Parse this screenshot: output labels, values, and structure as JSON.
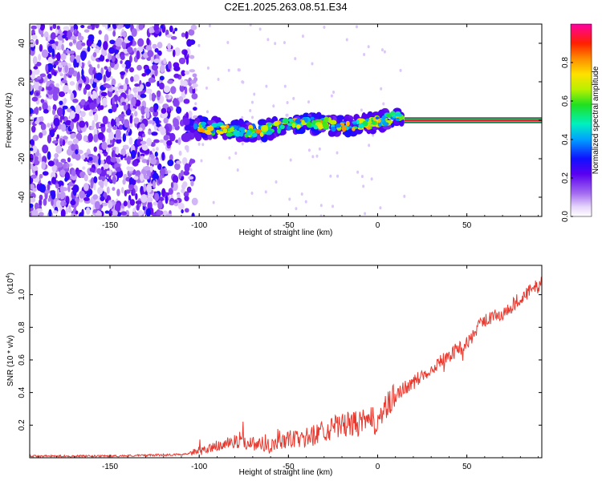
{
  "chart_data": [
    {
      "type": "heatmap",
      "title": "C2E1.2025.263.08.51.E34",
      "xlabel": "Height of straight line (km)",
      "ylabel": "Frequency (Hz)",
      "xlim": [
        -195,
        92
      ],
      "ylim": [
        -50,
        50
      ],
      "xticks": [
        -150,
        -100,
        -50,
        0,
        50
      ],
      "xtick_labels": [
        "-150",
        "-100",
        "-50",
        "0",
        "50"
      ],
      "yticks": [
        -40,
        -20,
        0,
        20,
        40
      ],
      "ytick_labels": [
        "-40",
        "-20",
        "0",
        "20",
        "40"
      ],
      "colorbar": {
        "label": "Normalized spectral amplitude",
        "range": [
          0,
          1
        ],
        "ticks": [
          0.0,
          0.2,
          0.4,
          0.6,
          0.8
        ],
        "tick_labels": [
          "0.0",
          "0.2",
          "0.4",
          "0.6",
          "0.8"
        ]
      },
      "features": {
        "noise_region_x": [
          -195,
          -108
        ],
        "noise_amplitude": 0.2,
        "signal_band_x": [
          -108,
          15
        ],
        "signal_band_frequency": [
          -8,
          4
        ],
        "signal_amplitude_range": [
          0.2,
          0.9
        ],
        "tone_line_x": [
          15,
          92
        ],
        "tone_line_frequency": 0,
        "tone_line_amplitude": 1.0
      }
    },
    {
      "type": "line",
      "xlabel": "Height of straight line (km)",
      "ylabel": "SNR (10 * v/v)",
      "scale_note": "(x10",
      "scale_exponent": "4",
      "xlim": [
        -195,
        92
      ],
      "ylim": [
        0,
        1.18
      ],
      "xticks": [
        -150,
        -100,
        -50,
        0,
        50
      ],
      "xtick_labels": [
        "-150",
        "-100",
        "-50",
        "0",
        "50"
      ],
      "yticks": [
        0.2,
        0.4,
        0.6,
        0.8,
        1.0
      ],
      "ytick_labels": [
        "0.2",
        "0.4",
        "0.6",
        "0.8",
        "1.0"
      ],
      "series": [
        {
          "name": "SNR",
          "color": "#e8392f",
          "x": [
            -195,
            -150,
            -110,
            -100,
            -90,
            -80,
            -70,
            -60,
            -50,
            -40,
            -30,
            -20,
            -10,
            0,
            5,
            10,
            15,
            20,
            30,
            40,
            50,
            60,
            70,
            80,
            92
          ],
          "y": [
            0.01,
            0.01,
            0.02,
            0.04,
            0.07,
            0.1,
            0.09,
            0.08,
            0.11,
            0.12,
            0.17,
            0.2,
            0.21,
            0.23,
            0.3,
            0.38,
            0.43,
            0.46,
            0.55,
            0.63,
            0.7,
            0.85,
            0.88,
            0.98,
            1.07
          ]
        }
      ]
    }
  ]
}
